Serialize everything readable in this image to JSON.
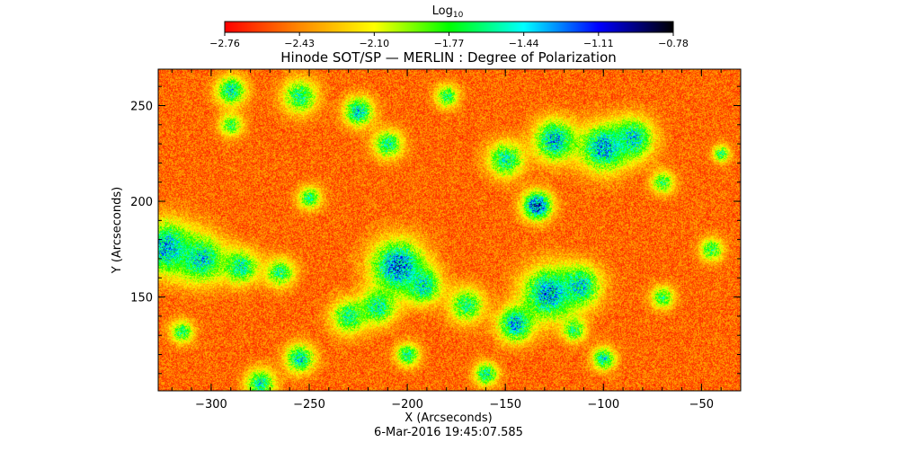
{
  "chart_data": {
    "type": "heatmap",
    "title": "Hinode SOT/SP — MERLIN : Degree of Polarization",
    "xlabel": "X (Arcseconds)",
    "ylabel": "Y (Arcseconds)",
    "timestamp": "6-Mar-2016 19:45:07.585",
    "xlim": [
      -327,
      -30
    ],
    "ylim": [
      101,
      269
    ],
    "x_ticks": [
      -300,
      -250,
      -200,
      -150,
      -100,
      -50
    ],
    "y_ticks": [
      150,
      200,
      250
    ],
    "x_tick_labels": [
      "−300",
      "−250",
      "−200",
      "−150",
      "−100",
      "−50"
    ],
    "y_tick_labels": [
      "150",
      "200",
      "250"
    ],
    "colorbar": {
      "label_base": "Log",
      "label_sub": "10",
      "range": [
        -2.76,
        -0.78
      ],
      "ticks": [
        -2.76,
        -2.43,
        -2.1,
        -1.77,
        -1.44,
        -1.11,
        -0.78
      ],
      "tick_labels": [
        "−2.76",
        "−2.43",
        "−2.10",
        "−1.77",
        "−1.44",
        "−1.11",
        "−0.78"
      ],
      "colors": [
        "#ff0000",
        "#ff8800",
        "#ffff00",
        "#00ff00",
        "#00ffff",
        "#0000ff",
        "#000000"
      ]
    },
    "features": [
      {
        "name": "pore",
        "x": -134,
        "y": 198,
        "radius": 5,
        "value": -0.95
      },
      {
        "name": "network",
        "x": -323,
        "y": 176,
        "radius": 9,
        "value": -1.2
      },
      {
        "name": "network",
        "x": -305,
        "y": 170,
        "radius": 8,
        "value": -1.3
      },
      {
        "name": "network",
        "x": -285,
        "y": 166,
        "radius": 6,
        "value": -1.4
      },
      {
        "name": "network",
        "x": -265,
        "y": 163,
        "radius": 5,
        "value": -1.5
      },
      {
        "name": "network",
        "x": -205,
        "y": 166,
        "radius": 9,
        "value": -1.05
      },
      {
        "name": "network",
        "x": -192,
        "y": 156,
        "radius": 6,
        "value": -1.3
      },
      {
        "name": "network",
        "x": -215,
        "y": 145,
        "radius": 6,
        "value": -1.4
      },
      {
        "name": "network",
        "x": -230,
        "y": 140,
        "radius": 6,
        "value": -1.45
      },
      {
        "name": "network",
        "x": -170,
        "y": 146,
        "radius": 6,
        "value": -1.5
      },
      {
        "name": "network",
        "x": -128,
        "y": 152,
        "radius": 9,
        "value": -1.15
      },
      {
        "name": "network",
        "x": -112,
        "y": 156,
        "radius": 7,
        "value": -1.3
      },
      {
        "name": "network",
        "x": -145,
        "y": 136,
        "radius": 6,
        "value": -1.2
      },
      {
        "name": "network",
        "x": -115,
        "y": 133,
        "radius": 4,
        "value": -1.5
      },
      {
        "name": "network",
        "x": -125,
        "y": 232,
        "radius": 7,
        "value": -1.2
      },
      {
        "name": "network",
        "x": -100,
        "y": 228,
        "radius": 8,
        "value": -1.15
      },
      {
        "name": "network",
        "x": -85,
        "y": 233,
        "radius": 7,
        "value": -1.3
      },
      {
        "name": "network",
        "x": -150,
        "y": 222,
        "radius": 6,
        "value": -1.4
      },
      {
        "name": "network",
        "x": -255,
        "y": 255,
        "radius": 6,
        "value": -1.5
      },
      {
        "name": "network",
        "x": -225,
        "y": 247,
        "radius": 5,
        "value": -1.3
      },
      {
        "name": "network",
        "x": -210,
        "y": 230,
        "radius": 5,
        "value": -1.45
      },
      {
        "name": "network",
        "x": -290,
        "y": 258,
        "radius": 5,
        "value": -1.35
      },
      {
        "name": "network",
        "x": -250,
        "y": 202,
        "radius": 4,
        "value": -1.55
      },
      {
        "name": "network",
        "x": -290,
        "y": 240,
        "radius": 4,
        "value": -1.6
      },
      {
        "name": "network",
        "x": -275,
        "y": 105,
        "radius": 5,
        "value": -1.4
      },
      {
        "name": "network",
        "x": -255,
        "y": 118,
        "radius": 5,
        "value": -1.35
      },
      {
        "name": "network",
        "x": -200,
        "y": 120,
        "radius": 4,
        "value": -1.45
      },
      {
        "name": "network",
        "x": -160,
        "y": 110,
        "radius": 4,
        "value": -1.4
      },
      {
        "name": "network",
        "x": -100,
        "y": 118,
        "radius": 4,
        "value": -1.4
      },
      {
        "name": "network",
        "x": -70,
        "y": 150,
        "radius": 4,
        "value": -1.6
      },
      {
        "name": "network",
        "x": -45,
        "y": 175,
        "radius": 4,
        "value": -1.55
      },
      {
        "name": "network",
        "x": -315,
        "y": 132,
        "radius": 4,
        "value": -1.55
      },
      {
        "name": "network",
        "x": -180,
        "y": 255,
        "radius": 4,
        "value": -1.55
      },
      {
        "name": "network",
        "x": -70,
        "y": 210,
        "radius": 4,
        "value": -1.6
      },
      {
        "name": "network",
        "x": -40,
        "y": 225,
        "radius": 3,
        "value": -1.55
      }
    ]
  }
}
